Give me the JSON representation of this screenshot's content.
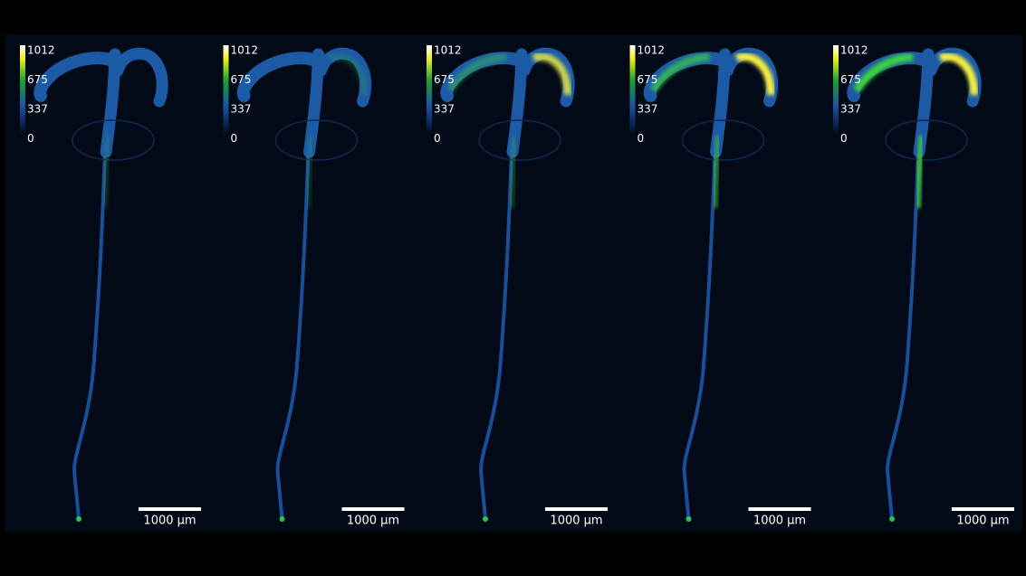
{
  "panels": [
    {
      "colorbar_ticks": [
        1012,
        675,
        337,
        0
      ],
      "scale_bar": "1000 µm"
    },
    {
      "colorbar_ticks": [
        1012,
        675,
        337,
        0
      ],
      "scale_bar": "1000 µm"
    },
    {
      "colorbar_ticks": [
        1012,
        675,
        337,
        0
      ],
      "scale_bar": "1000 µm"
    },
    {
      "colorbar_ticks": [
        1012,
        675,
        337,
        0
      ],
      "scale_bar": "1000 µm"
    },
    {
      "colorbar_ticks": [
        1012,
        675,
        337,
        0
      ],
      "scale_bar": "1000 µm"
    }
  ]
}
